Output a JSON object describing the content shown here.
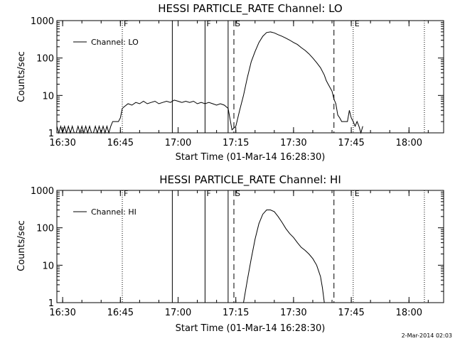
{
  "footer_timestamp": "2-Mar-2014 02:03",
  "chart_data": [
    {
      "type": "line",
      "title": "HESSI PARTICLE_RATE Channel: LO",
      "xlabel": "Start Time (01-Mar-14 16:28:30)",
      "ylabel": "Counts/sec",
      "y_scale": "log",
      "ylim": [
        1,
        1000
      ],
      "xlim": [
        "16:28:30",
        "18:09:00"
      ],
      "x_ticks": [
        "16:30",
        "16:45",
        "17:00",
        "17:15",
        "17:30",
        "17:45",
        "18:00"
      ],
      "y_ticks": [
        "1",
        "10",
        "100",
        "1000"
      ],
      "legend": {
        "label": "Channel: LO",
        "position": "top-left"
      },
      "markers": [
        {
          "label": "F",
          "time": "16:45:30",
          "style": "dotted"
        },
        {
          "label": "",
          "time": "16:58:30",
          "style": "solid"
        },
        {
          "label": "F",
          "time": "17:07:00",
          "style": "solid"
        },
        {
          "label": "",
          "time": "17:13:00",
          "style": "solid"
        },
        {
          "label": "S",
          "time": "17:14:30",
          "style": "dashed"
        },
        {
          "label": "",
          "time": "17:40:30",
          "style": "dashed"
        },
        {
          "label": "E",
          "time": "17:45:30",
          "style": "dotted"
        },
        {
          "label": "",
          "time": "18:04:00",
          "style": "dotted"
        }
      ],
      "series": [
        {
          "name": "Channel: LO",
          "x": [
            "16:28:30",
            "16:29:00",
            "16:29:30",
            "16:30:00",
            "16:30:30",
            "16:31:00",
            "16:31:30",
            "16:32:00",
            "16:32:30",
            "16:33:00",
            "16:33:30",
            "16:34:00",
            "16:34:30",
            "16:35:00",
            "16:35:30",
            "16:36:00",
            "16:36:30",
            "16:37:00",
            "16:37:30",
            "16:38:00",
            "16:38:30",
            "16:39:00",
            "16:39:30",
            "16:40:00",
            "16:40:30",
            "16:41:00",
            "16:41:30",
            "16:42:00",
            "16:42:30",
            "16:43:00",
            "16:43:30",
            "16:44:00",
            "16:44:30",
            "16:45:00",
            "16:45:30",
            "16:46:00",
            "16:47:00",
            "16:48:00",
            "16:49:00",
            "16:50:00",
            "16:51:00",
            "16:52:00",
            "16:53:00",
            "16:54:00",
            "16:55:00",
            "16:56:00",
            "16:57:00",
            "16:58:00",
            "16:58:30",
            "16:59:00",
            "17:00:00",
            "17:01:00",
            "17:02:00",
            "17:03:00",
            "17:04:00",
            "17:05:00",
            "17:06:00",
            "17:07:00",
            "17:08:00",
            "17:09:00",
            "17:10:00",
            "17:11:00",
            "17:12:00",
            "17:12:30",
            "17:13:00",
            "17:14:00",
            "17:15:00",
            "17:16:00",
            "17:17:00",
            "17:18:00",
            "17:19:00",
            "17:20:00",
            "17:21:00",
            "17:22:00",
            "17:23:00",
            "17:24:00",
            "17:25:00",
            "17:26:00",
            "17:27:00",
            "17:28:00",
            "17:29:00",
            "17:30:00",
            "17:31:00",
            "17:32:00",
            "17:33:00",
            "17:34:00",
            "17:35:00",
            "17:36:00",
            "17:37:00",
            "17:38:00",
            "17:38:30",
            "17:39:00",
            "17:40:00",
            "17:40:30",
            "17:41:00",
            "17:41:30",
            "17:42:00",
            "17:42:30",
            "17:43:00",
            "17:43:30",
            "17:44:00",
            "17:44:30",
            "17:45:00",
            "17:45:30",
            "17:46:00",
            "17:46:30",
            "17:47:00",
            "17:47:30",
            "17:48:00"
          ],
          "y": [
            1.5,
            1,
            1.5,
            1,
            1.5,
            1,
            1.5,
            1,
            1.5,
            1,
            1,
            1.5,
            1,
            1.5,
            1,
            1.5,
            1,
            1.5,
            1,
            1,
            1.5,
            1,
            1.5,
            1,
            1.5,
            1,
            1.5,
            1,
            1.5,
            2,
            2,
            2,
            2,
            2.5,
            4.5,
            5,
            6,
            5.5,
            6.5,
            6,
            7,
            6,
            6.5,
            7,
            6,
            6.5,
            7,
            6.5,
            7,
            7.5,
            7,
            6.5,
            7,
            6.5,
            7,
            6,
            6.5,
            6,
            6.5,
            6,
            5.5,
            6,
            5.5,
            5,
            4.5,
            1.2,
            1.5,
            4,
            10,
            30,
            80,
            150,
            260,
            380,
            480,
            500,
            470,
            420,
            380,
            340,
            300,
            260,
            230,
            190,
            160,
            130,
            100,
            75,
            55,
            35,
            25,
            20,
            13,
            8,
            6,
            3,
            2.5,
            2,
            2,
            2,
            2,
            4,
            2.5,
            2,
            1.5,
            2,
            1.5,
            1,
            1.5
          ]
        }
      ]
    },
    {
      "type": "line",
      "title": "HESSI PARTICLE_RATE Channel: HI",
      "xlabel": "Start Time (01-Mar-14 16:28:30)",
      "ylabel": "Counts/sec",
      "y_scale": "log",
      "ylim": [
        1,
        1000
      ],
      "xlim": [
        "16:28:30",
        "18:09:00"
      ],
      "x_ticks": [
        "16:30",
        "16:45",
        "17:00",
        "17:15",
        "17:30",
        "17:45",
        "18:00"
      ],
      "y_ticks": [
        "1",
        "10",
        "100",
        "1000"
      ],
      "legend": {
        "label": "Channel: HI",
        "position": "top-left"
      },
      "markers": [
        {
          "label": "F",
          "time": "16:45:30",
          "style": "dotted"
        },
        {
          "label": "",
          "time": "16:58:30",
          "style": "solid"
        },
        {
          "label": "F",
          "time": "17:07:00",
          "style": "solid"
        },
        {
          "label": "",
          "time": "17:13:00",
          "style": "solid"
        },
        {
          "label": "S",
          "time": "17:14:30",
          "style": "dashed"
        },
        {
          "label": "",
          "time": "17:40:30",
          "style": "dashed"
        },
        {
          "label": "E",
          "time": "17:45:30",
          "style": "dotted"
        },
        {
          "label": "",
          "time": "18:04:00",
          "style": "dotted"
        }
      ],
      "series": [
        {
          "name": "Channel: HI",
          "x": [
            "17:17:00",
            "17:18:00",
            "17:19:00",
            "17:20:00",
            "17:21:00",
            "17:22:00",
            "17:23:00",
            "17:24:00",
            "17:25:00",
            "17:26:00",
            "17:27:00",
            "17:28:00",
            "17:29:00",
            "17:30:00",
            "17:31:00",
            "17:32:00",
            "17:33:00",
            "17:34:00",
            "17:35:00",
            "17:36:00",
            "17:37:00",
            "17:37:30",
            "17:38:00"
          ],
          "y": [
            1,
            4,
            15,
            50,
            130,
            230,
            300,
            300,
            270,
            200,
            140,
            95,
            70,
            55,
            40,
            30,
            25,
            20,
            15,
            10,
            5,
            2.5,
            1
          ]
        }
      ]
    }
  ]
}
